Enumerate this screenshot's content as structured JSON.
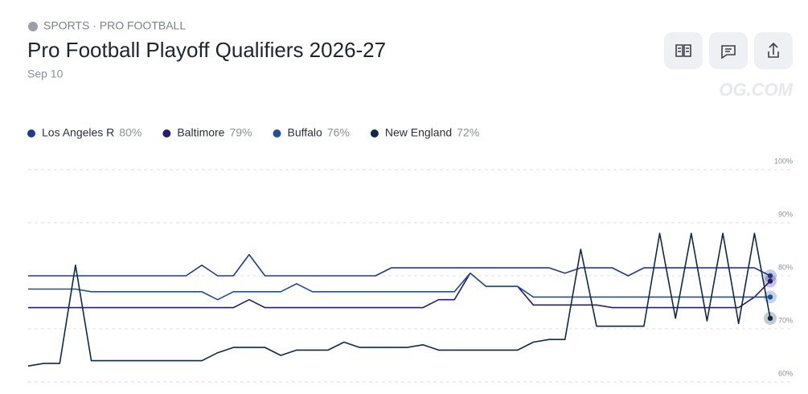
{
  "header": {
    "category": "SPORTS · PRO FOOTBALL",
    "watermark": "OG.COM"
  },
  "chart_data": {
    "type": "line",
    "title": "Pro Football Playoff Qualifiers 2026-27",
    "subtitle": "Sep 10",
    "ylim": [
      60,
      100
    ],
    "yticks": [
      {
        "value": 60,
        "label": "60%"
      },
      {
        "value": 70,
        "label": "70%"
      },
      {
        "value": 80,
        "label": "80%"
      },
      {
        "value": 90,
        "label": "90%"
      },
      {
        "value": 100,
        "label": "100%"
      }
    ],
    "grid": true,
    "series": [
      {
        "name": "Los Angeles R",
        "color": "#1f3c8c",
        "current": {
          "value": 80,
          "label": "80%"
        },
        "values": [
          80,
          80,
          80,
          80,
          80,
          80,
          80,
          80,
          80,
          80,
          80,
          82,
          80,
          80,
          84,
          80,
          80,
          80,
          80,
          80,
          80,
          80,
          80,
          81.5,
          81.5,
          81.5,
          81.5,
          81.5,
          81.5,
          81.5,
          81.5,
          81.5,
          81.5,
          81.5,
          80.5,
          81.5,
          81.5,
          81.5,
          80,
          81.5,
          81.5,
          81.5,
          81.5,
          81.5,
          81.5,
          81.5,
          81.5,
          80
        ]
      },
      {
        "name": "Baltimore",
        "color": "#2b1d6e",
        "current": {
          "value": 79,
          "label": "79%"
        },
        "values": [
          74,
          74,
          74,
          74,
          74,
          74,
          74,
          74,
          74,
          74,
          74,
          74,
          74,
          74,
          75.5,
          74,
          74,
          74,
          74,
          74,
          74,
          74,
          74,
          74,
          74,
          74,
          75.5,
          75.5,
          80.5,
          78,
          78,
          78,
          74.5,
          74.5,
          74.5,
          74.5,
          74.5,
          74,
          74,
          74,
          74,
          74,
          74,
          74,
          74,
          74,
          76,
          79
        ]
      },
      {
        "name": "Buffalo",
        "color": "#1d4f9e",
        "current": {
          "value": 76,
          "label": "76%"
        },
        "values": [
          77.5,
          77.5,
          77.5,
          77.5,
          77,
          77,
          77,
          77,
          77,
          77,
          77,
          77,
          75.5,
          77,
          77,
          77,
          77,
          78.5,
          77,
          77,
          77,
          77,
          77,
          77,
          77,
          77,
          77,
          77,
          80.5,
          78,
          78,
          78,
          76,
          76,
          76,
          76,
          76,
          76,
          76,
          76,
          76,
          76,
          76,
          76,
          76,
          76,
          76,
          76
        ]
      },
      {
        "name": "New England",
        "color": "#0e2a44",
        "current": {
          "value": 72,
          "label": "72%"
        },
        "values": [
          63,
          63.5,
          63.5,
          82,
          64,
          64,
          64,
          64,
          64,
          64,
          64,
          64,
          65.5,
          66.5,
          66.5,
          66.5,
          65,
          66,
          66,
          66,
          67.5,
          66.5,
          66.5,
          66.5,
          66.5,
          67,
          66,
          66,
          66,
          66,
          66,
          66,
          67.5,
          68,
          68,
          85,
          70.5,
          70.5,
          70.5,
          70.5,
          88,
          72,
          88,
          71.5,
          88,
          71,
          88,
          72
        ]
      }
    ]
  }
}
